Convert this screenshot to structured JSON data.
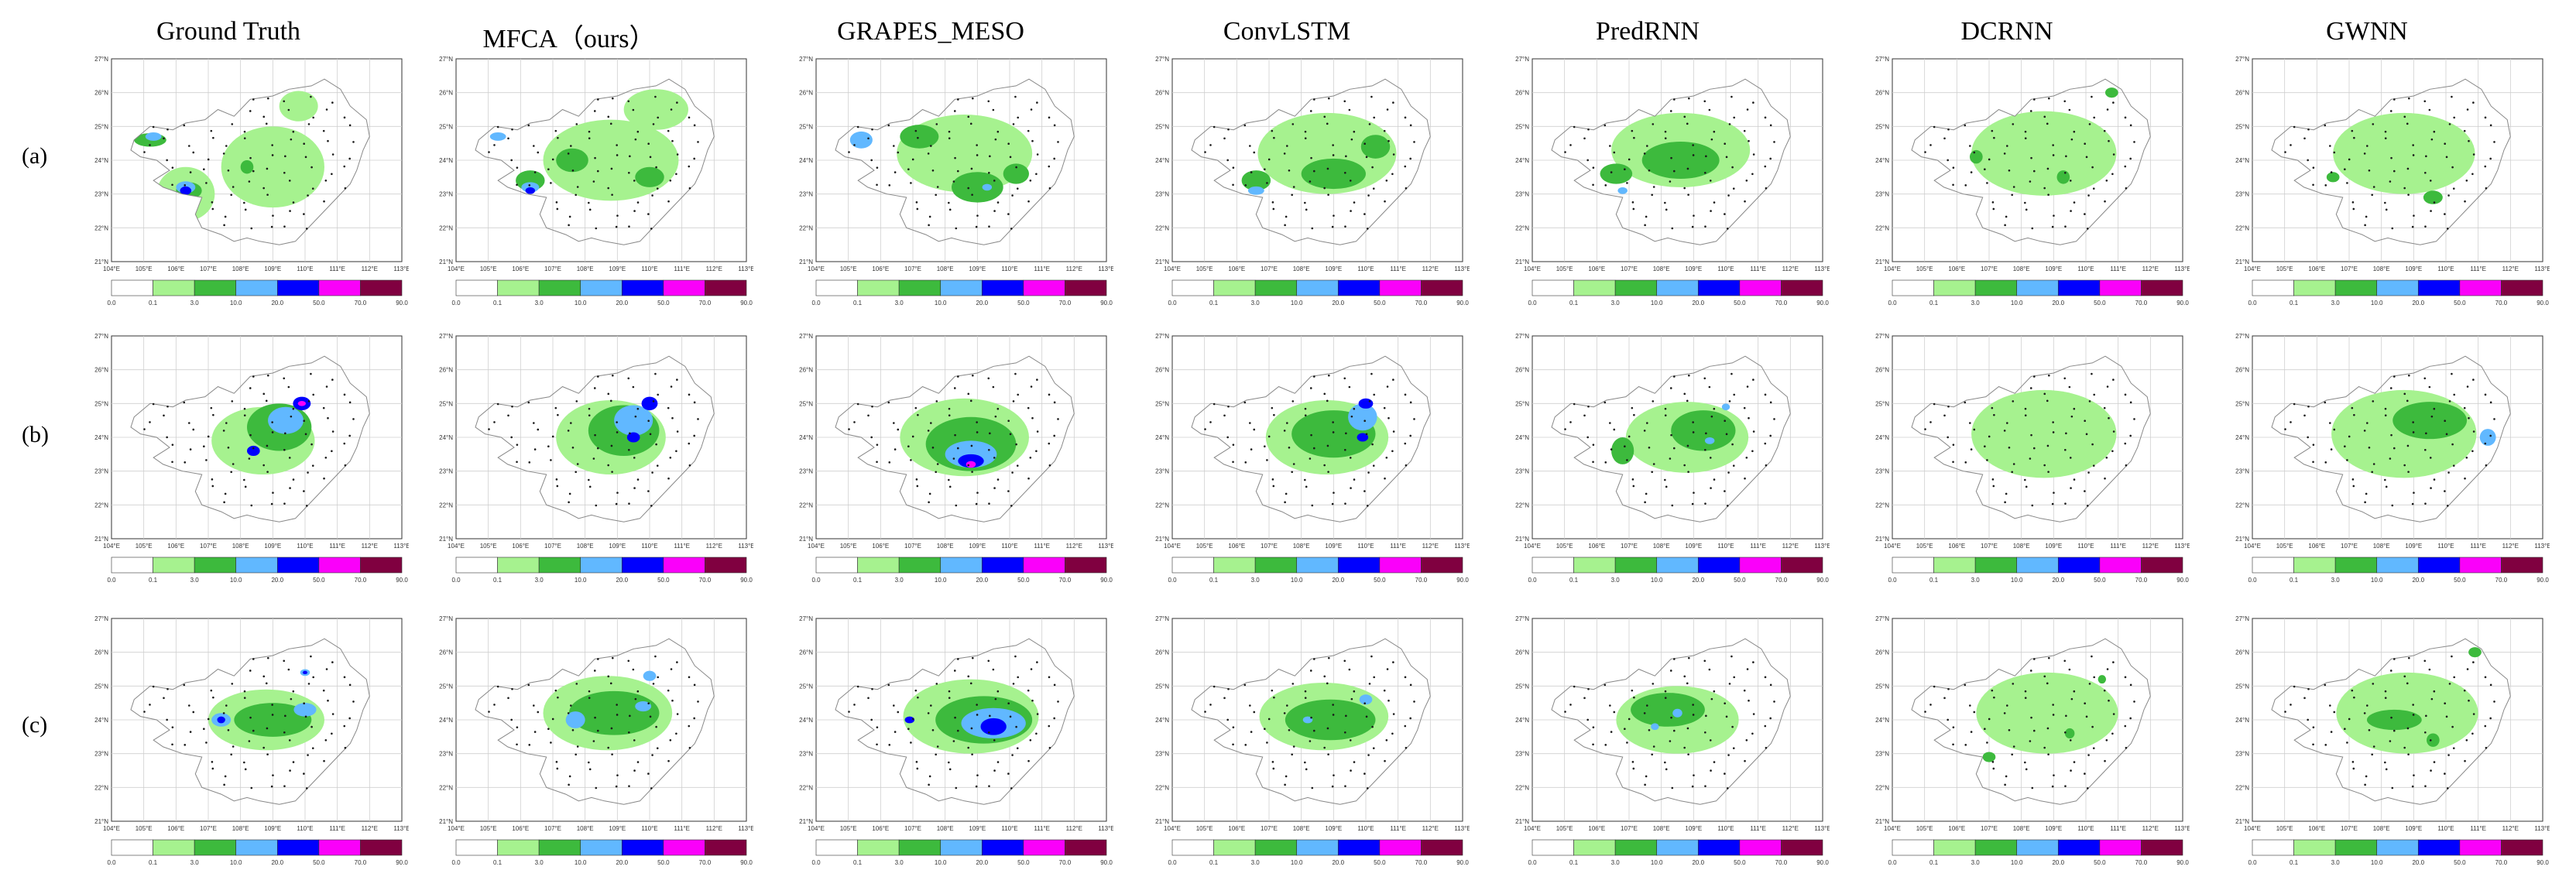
{
  "figure": {
    "columns": [
      "Ground Truth",
      "MFCA（ours）",
      "GRAPES_MESO",
      "ConvLSTM",
      "PredRNN",
      "DCRNN",
      "GWNN"
    ],
    "rows": [
      "(a)",
      "(b)",
      "(c)"
    ]
  },
  "chart_data": {
    "type": "heatmap",
    "description_of_axes": "Each panel is a precipitation map over Guangxi with longitude on x and latitude on y.",
    "x_ticks": [
      "104°E",
      "105°E",
      "106°E",
      "107°E",
      "108°E",
      "109°E",
      "110°E",
      "111°E",
      "112°E",
      "113°E"
    ],
    "y_ticks": [
      "27°N",
      "26°N",
      "25°N",
      "24°N",
      "23°N",
      "22°N",
      "21°N"
    ],
    "xlim": [
      104,
      113
    ],
    "ylim": [
      21,
      27
    ],
    "colorbar": {
      "levels": [
        "0.0",
        "0.1",
        "3.0",
        "10.0",
        "20.0",
        "50.0",
        "70.0",
        "90.0"
      ],
      "colors": [
        "#ffffff",
        "#a6f28f",
        "#3dba3d",
        "#61b8ff",
        "#0000fe",
        "#fa00fa",
        "#800040"
      ]
    },
    "outline_color": "#888888",
    "station_color": "#1a1a1a",
    "panels": [
      {
        "row": 0,
        "col": 0,
        "blobs": [
          [
            106.3,
            23.0,
            1.8,
            1.6,
            1
          ],
          [
            109.0,
            23.8,
            3.2,
            2.4,
            1
          ],
          [
            109.8,
            25.6,
            1.2,
            0.9,
            1
          ],
          [
            105.2,
            24.6,
            1.0,
            0.4,
            2
          ],
          [
            106.4,
            23.1,
            0.8,
            0.5,
            2
          ],
          [
            108.2,
            23.8,
            0.4,
            0.4,
            2
          ],
          [
            105.3,
            24.7,
            0.5,
            0.25,
            3
          ],
          [
            106.3,
            23.2,
            0.6,
            0.35,
            3
          ],
          [
            106.3,
            23.1,
            0.35,
            0.25,
            4
          ]
        ]
      },
      {
        "row": 0,
        "col": 1,
        "blobs": [
          [
            108.8,
            24.0,
            4.2,
            2.4,
            1
          ],
          [
            110.2,
            25.5,
            2.0,
            1.2,
            1
          ],
          [
            106.3,
            23.4,
            0.9,
            0.6,
            2
          ],
          [
            107.6,
            24.0,
            1.0,
            0.7,
            2
          ],
          [
            110.0,
            23.5,
            0.9,
            0.6,
            2
          ],
          [
            105.3,
            24.7,
            0.5,
            0.25,
            3
          ],
          [
            106.3,
            23.2,
            0.55,
            0.3,
            3
          ],
          [
            106.3,
            23.1,
            0.3,
            0.2,
            4
          ]
        ]
      },
      {
        "row": 0,
        "col": 2,
        "blobs": [
          [
            108.6,
            24.2,
            4.2,
            2.3,
            1
          ],
          [
            109.0,
            23.2,
            1.6,
            0.9,
            2
          ],
          [
            107.2,
            24.7,
            1.2,
            0.7,
            2
          ],
          [
            110.2,
            23.6,
            0.8,
            0.6,
            2
          ],
          [
            105.4,
            24.6,
            0.7,
            0.5,
            3
          ],
          [
            109.3,
            23.2,
            0.3,
            0.2,
            3
          ]
        ]
      },
      {
        "row": 0,
        "col": 3,
        "blobs": [
          [
            108.8,
            24.2,
            4.3,
            2.4,
            1
          ],
          [
            109.0,
            23.6,
            2.0,
            0.9,
            2
          ],
          [
            106.6,
            23.4,
            0.9,
            0.6,
            2
          ],
          [
            110.3,
            24.4,
            0.9,
            0.7,
            2
          ],
          [
            106.6,
            23.1,
            0.5,
            0.25,
            3
          ]
        ]
      },
      {
        "row": 0,
        "col": 4,
        "blobs": [
          [
            108.6,
            24.3,
            4.3,
            2.2,
            1
          ],
          [
            108.6,
            24.0,
            2.4,
            1.1,
            2
          ],
          [
            106.6,
            23.6,
            1.0,
            0.6,
            2
          ],
          [
            106.8,
            23.1,
            0.3,
            0.2,
            3
          ]
        ]
      },
      {
        "row": 0,
        "col": 5,
        "blobs": [
          [
            108.7,
            24.2,
            4.5,
            2.5,
            1
          ],
          [
            106.6,
            24.1,
            0.4,
            0.4,
            2
          ],
          [
            109.3,
            23.5,
            0.4,
            0.4,
            2
          ],
          [
            110.8,
            26.0,
            0.4,
            0.3,
            2
          ]
        ]
      },
      {
        "row": 0,
        "col": 6,
        "blobs": [
          [
            108.7,
            24.2,
            4.4,
            2.4,
            1
          ],
          [
            106.5,
            23.5,
            0.4,
            0.3,
            2
          ],
          [
            109.6,
            22.9,
            0.6,
            0.4,
            2
          ]
        ]
      },
      {
        "row": 1,
        "col": 0,
        "blobs": [
          [
            108.7,
            23.9,
            3.2,
            2.0,
            1
          ],
          [
            109.2,
            24.3,
            2.0,
            1.4,
            2
          ],
          [
            109.4,
            24.5,
            1.1,
            0.8,
            3
          ],
          [
            109.9,
            25.0,
            0.55,
            0.4,
            4
          ],
          [
            108.4,
            23.6,
            0.4,
            0.3,
            4
          ],
          [
            109.9,
            25.0,
            0.25,
            0.15,
            5
          ]
        ]
      },
      {
        "row": 1,
        "col": 1,
        "blobs": [
          [
            108.8,
            24.0,
            3.4,
            2.2,
            1
          ],
          [
            109.2,
            24.2,
            2.2,
            1.5,
            2
          ],
          [
            109.5,
            24.5,
            1.2,
            0.9,
            3
          ],
          [
            110.0,
            25.0,
            0.5,
            0.4,
            4
          ],
          [
            109.5,
            24.0,
            0.4,
            0.3,
            4
          ]
        ]
      },
      {
        "row": 1,
        "col": 2,
        "blobs": [
          [
            108.6,
            24.0,
            4.0,
            2.3,
            1
          ],
          [
            108.8,
            23.8,
            2.8,
            1.6,
            2
          ],
          [
            108.8,
            23.5,
            1.6,
            0.8,
            3
          ],
          [
            108.8,
            23.3,
            0.8,
            0.4,
            4
          ],
          [
            108.8,
            23.2,
            0.3,
            0.2,
            5
          ]
        ]
      },
      {
        "row": 1,
        "col": 3,
        "blobs": [
          [
            108.8,
            24.0,
            3.8,
            2.2,
            1
          ],
          [
            109.0,
            24.1,
            2.6,
            1.4,
            2
          ],
          [
            109.9,
            24.6,
            0.9,
            0.8,
            3
          ],
          [
            110.0,
            25.0,
            0.45,
            0.3,
            4
          ],
          [
            109.9,
            24.0,
            0.35,
            0.25,
            4
          ]
        ]
      },
      {
        "row": 1,
        "col": 4,
        "blobs": [
          [
            108.8,
            24.0,
            3.8,
            2.1,
            1
          ],
          [
            109.3,
            24.2,
            2.0,
            1.2,
            2
          ],
          [
            106.8,
            23.6,
            0.7,
            0.8,
            2
          ],
          [
            109.5,
            23.9,
            0.3,
            0.2,
            3
          ],
          [
            110.0,
            24.9,
            0.25,
            0.2,
            3
          ]
        ]
      },
      {
        "row": 1,
        "col": 5,
        "blobs": [
          [
            108.7,
            24.1,
            4.5,
            2.6,
            1
          ]
        ]
      },
      {
        "row": 1,
        "col": 6,
        "blobs": [
          [
            108.7,
            24.1,
            4.5,
            2.6,
            1
          ],
          [
            109.5,
            24.5,
            2.3,
            1.1,
            2
          ],
          [
            111.3,
            24.0,
            0.5,
            0.5,
            3
          ]
        ]
      },
      {
        "row": 2,
        "col": 0,
        "blobs": [
          [
            108.8,
            24.0,
            3.6,
            1.8,
            1
          ],
          [
            109.0,
            24.0,
            2.4,
            1.0,
            2
          ],
          [
            107.4,
            24.0,
            0.6,
            0.4,
            3
          ],
          [
            110.0,
            24.3,
            0.7,
            0.4,
            3
          ],
          [
            110.0,
            25.4,
            0.3,
            0.2,
            3
          ],
          [
            107.4,
            24.0,
            0.25,
            0.2,
            4
          ],
          [
            110.0,
            25.4,
            0.15,
            0.1,
            4
          ]
        ]
      },
      {
        "row": 2,
        "col": 1,
        "blobs": [
          [
            108.7,
            24.2,
            4.0,
            2.2,
            1
          ],
          [
            108.9,
            24.2,
            2.8,
            1.3,
            2
          ],
          [
            107.7,
            24.0,
            0.6,
            0.5,
            3
          ],
          [
            110.0,
            25.3,
            0.4,
            0.3,
            3
          ],
          [
            109.8,
            24.4,
            0.5,
            0.3,
            3
          ]
        ]
      },
      {
        "row": 2,
        "col": 2,
        "blobs": [
          [
            108.8,
            24.1,
            4.2,
            2.2,
            1
          ],
          [
            109.2,
            24.0,
            3.0,
            1.4,
            2
          ],
          [
            109.5,
            23.9,
            2.0,
            0.9,
            3
          ],
          [
            109.5,
            23.8,
            0.8,
            0.5,
            4
          ],
          [
            106.9,
            24.0,
            0.3,
            0.2,
            4
          ]
        ]
      },
      {
        "row": 2,
        "col": 3,
        "blobs": [
          [
            108.7,
            24.1,
            4.0,
            2.0,
            1
          ],
          [
            108.9,
            24.0,
            2.8,
            1.2,
            2
          ],
          [
            110.0,
            24.6,
            0.4,
            0.3,
            3
          ],
          [
            108.2,
            24.0,
            0.3,
            0.2,
            3
          ]
        ]
      },
      {
        "row": 2,
        "col": 4,
        "blobs": [
          [
            108.5,
            24.0,
            3.8,
            2.0,
            1
          ],
          [
            108.2,
            24.3,
            2.3,
            1.0,
            2
          ],
          [
            108.5,
            24.2,
            0.3,
            0.25,
            3
          ],
          [
            107.8,
            23.8,
            0.25,
            0.2,
            3
          ]
        ]
      },
      {
        "row": 2,
        "col": 5,
        "blobs": [
          [
            108.8,
            24.2,
            4.4,
            2.4,
            1
          ],
          [
            107.0,
            22.9,
            0.4,
            0.3,
            2
          ],
          [
            109.5,
            23.6,
            0.3,
            0.3,
            2
          ],
          [
            110.5,
            25.2,
            0.25,
            0.25,
            2
          ]
        ]
      },
      {
        "row": 2,
        "col": 6,
        "blobs": [
          [
            108.8,
            24.2,
            4.4,
            2.4,
            1
          ],
          [
            108.4,
            24.0,
            1.7,
            0.6,
            2
          ],
          [
            109.6,
            23.4,
            0.4,
            0.4,
            2
          ],
          [
            110.9,
            26.0,
            0.4,
            0.3,
            2
          ]
        ]
      }
    ]
  }
}
